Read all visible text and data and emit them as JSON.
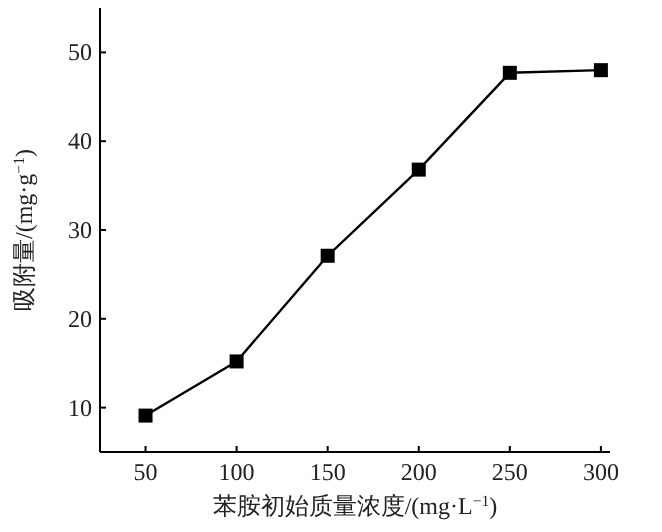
{
  "chart_data": {
    "type": "line",
    "xlabel": "苯胺初始质量浓度/(mg·L$^{−1}$)",
    "ylabel": "吸附量/(mg·g$^{−1}$)",
    "x": [
      50,
      100,
      150,
      200,
      250,
      300
    ],
    "series": [
      {
        "color": "#000000",
        "values": [
          9.1,
          15.2,
          27.1,
          36.8,
          47.7,
          48.0
        ]
      }
    ],
    "xlim": [
      25,
      305
    ],
    "ylim": [
      5,
      55
    ],
    "xticks": [
      50,
      100,
      150,
      200,
      250,
      300
    ],
    "yticks": [
      10,
      20,
      30,
      40,
      50
    ],
    "marker": "square",
    "line_style": "solid"
  }
}
